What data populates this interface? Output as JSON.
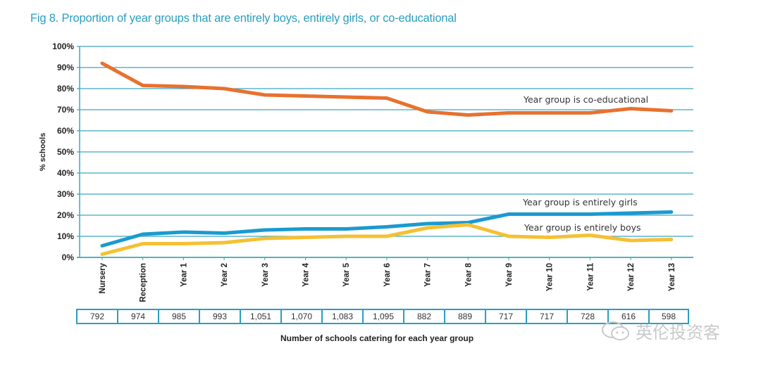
{
  "title": "Fig 8. Proportion of year groups that are entirely boys, entirely girls, or co-educational",
  "chart_data": {
    "type": "line",
    "title": "Fig 8. Proportion of year groups that are entirely boys, entirely girls, or co-educational",
    "xlabel": "Number of schools catering for each year group",
    "ylabel": "% schools",
    "ylim": [
      0,
      100
    ],
    "yticks": [
      0,
      10,
      20,
      30,
      40,
      50,
      60,
      70,
      80,
      90,
      100
    ],
    "ytick_labels": [
      "0%",
      "10%",
      "20%",
      "30%",
      "40%",
      "50%",
      "60%",
      "70%",
      "80%",
      "90%",
      "100%"
    ],
    "grid": true,
    "categories": [
      "Nursery",
      "Reception",
      "Year 1",
      "Year 2",
      "Year 3",
      "Year 4",
      "Year 5",
      "Year 6",
      "Year 7",
      "Year 8",
      "Year 9",
      "Year 10",
      "Year 11",
      "Year 12",
      "Year 13"
    ],
    "series": [
      {
        "name": "Year group is co-educational",
        "color": "#e8712e",
        "values": [
          92,
          81.5,
          81,
          80,
          77,
          76.5,
          76,
          75.5,
          69,
          67.5,
          68.5,
          68.5,
          68.5,
          70.5,
          69.5
        ]
      },
      {
        "name": "Year group is entirely girls",
        "color": "#1a9ad0",
        "values": [
          5.5,
          11,
          12,
          11.5,
          13,
          13.5,
          13.5,
          14.5,
          16,
          16.5,
          20.5,
          20.5,
          20.5,
          21,
          21.5
        ]
      },
      {
        "name": "Year group is entirely boys",
        "color": "#f5c033",
        "values": [
          1.5,
          6.5,
          6.5,
          7,
          9,
          9.5,
          10,
          10,
          14,
          15.5,
          10,
          9.5,
          10.5,
          8,
          8.5
        ]
      }
    ],
    "school_counts": [
      "792",
      "974",
      "985",
      "993",
      "1,051",
      "1,070",
      "1,083",
      "1,095",
      "882",
      "889",
      "717",
      "717",
      "728",
      "616",
      "598"
    ]
  },
  "watermark": {
    "text": "英伦投资客"
  },
  "colors": {
    "accent": "#2a9fc0",
    "grid": "#3aa6c0"
  }
}
